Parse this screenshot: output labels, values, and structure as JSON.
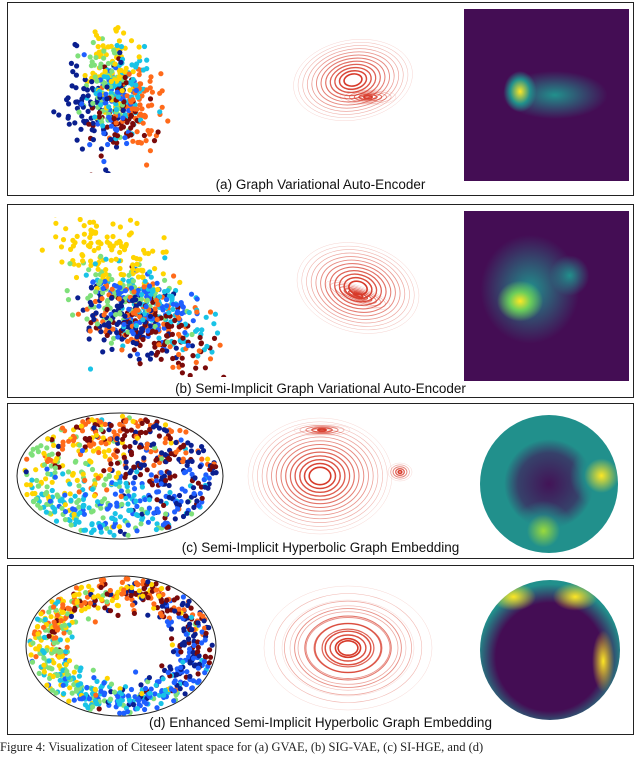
{
  "panels": [
    {
      "caption": "(a) Graph Variational Auto-Encoder"
    },
    {
      "caption": "(b) Semi-Implicit Graph Variational Auto-Encoder"
    },
    {
      "caption": "(c) Semi-Implicit Hyperbolic Graph Embedding"
    },
    {
      "caption": "(d) Enhanced Semi-Implicit Hyperbolic Graph Embedding"
    }
  ],
  "figure_caption": "Figure 4: Visualization of Citeseer latent space for (a) GVAE, (b) SIG-VAE, (c) SI-HGE, and (d)",
  "colors": {
    "cluster_palette": [
      "#0a1f8f",
      "#1f5fff",
      "#19c3e6",
      "#7fe07a",
      "#ffd400",
      "#ff6a1a",
      "#7a0a0a"
    ],
    "contour": "#d73a2a",
    "heat_low": "#440d54",
    "heat_mid": "#21908c",
    "heat_high": "#fde725"
  }
}
